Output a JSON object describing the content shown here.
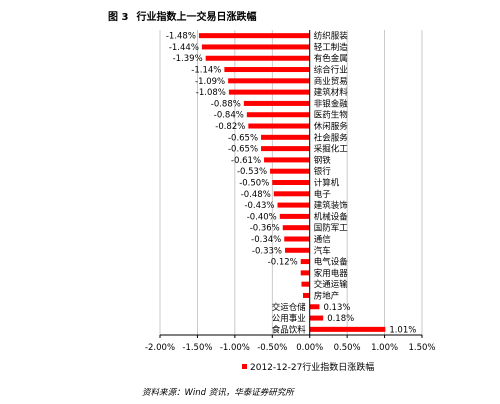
{
  "title": {
    "number": "图 3",
    "text": "行业指数上一交易日涨跌幅"
  },
  "source": "资料来源：Wind 资讯，华泰证券研究所",
  "chart_data": {
    "type": "bar",
    "orientation": "horizontal",
    "categories": [
      "纺织服装",
      "轻工制造",
      "有色金属",
      "综合行业",
      "商业贸易",
      "建筑材料",
      "非银金融",
      "医药生物",
      "休闲服务",
      "社会服务",
      "采掘化工",
      "钢铁",
      "银行",
      "计算机",
      "电子",
      "建筑装饰",
      "机械设备",
      "国防军工",
      "通信",
      "汽车",
      "电气设备",
      "家用电器",
      "交通运输",
      "房地产",
      "交运仓储",
      "公用事业",
      "食品饮料"
    ],
    "series": [
      {
        "name": "2012-12-27行业指数日涨跌幅",
        "values": [
          -1.48,
          -1.44,
          -1.39,
          -1.14,
          -1.09,
          -1.08,
          -0.88,
          -0.84,
          -0.82,
          -0.65,
          -0.65,
          -0.61,
          -0.53,
          -0.5,
          -0.48,
          -0.43,
          -0.4,
          -0.36,
          -0.34,
          -0.33,
          -0.12,
          -0.12,
          -0.11,
          -0.09,
          0.13,
          0.18,
          1.01
        ]
      }
    ],
    "data_labels": [
      "-1.48%",
      "-1.44%",
      "-1.39%",
      "-1.14%",
      "-1.09%",
      "-1.08%",
      "-0.88%",
      "-0.84%",
      "-0.82%",
      "-0.65%",
      "-0.65%",
      "-0.61%",
      "-0.53%",
      "-0.50%",
      "-0.48%",
      "-0.43%",
      "-0.40%",
      "-0.36%",
      "-0.34%",
      "-0.33%",
      "-0.12%",
      "",
      "",
      "",
      "0.13%",
      "0.18%",
      "1.01%"
    ],
    "xlim": [
      -2.0,
      1.5
    ],
    "xticks": [
      -2.0,
      -1.5,
      -1.0,
      -0.5,
      0.0,
      0.5,
      1.0,
      1.5
    ],
    "xtick_labels": [
      "-2.00%",
      "-1.50%",
      "-1.00%",
      "-0.50%",
      "0.00%",
      "0.50%",
      "1.00%",
      "1.50%"
    ],
    "grid": "vertical",
    "legend": "bottom",
    "bar_color": "#ff0000",
    "axis_color": "#000000",
    "grid_color": "#bdbdbd"
  }
}
